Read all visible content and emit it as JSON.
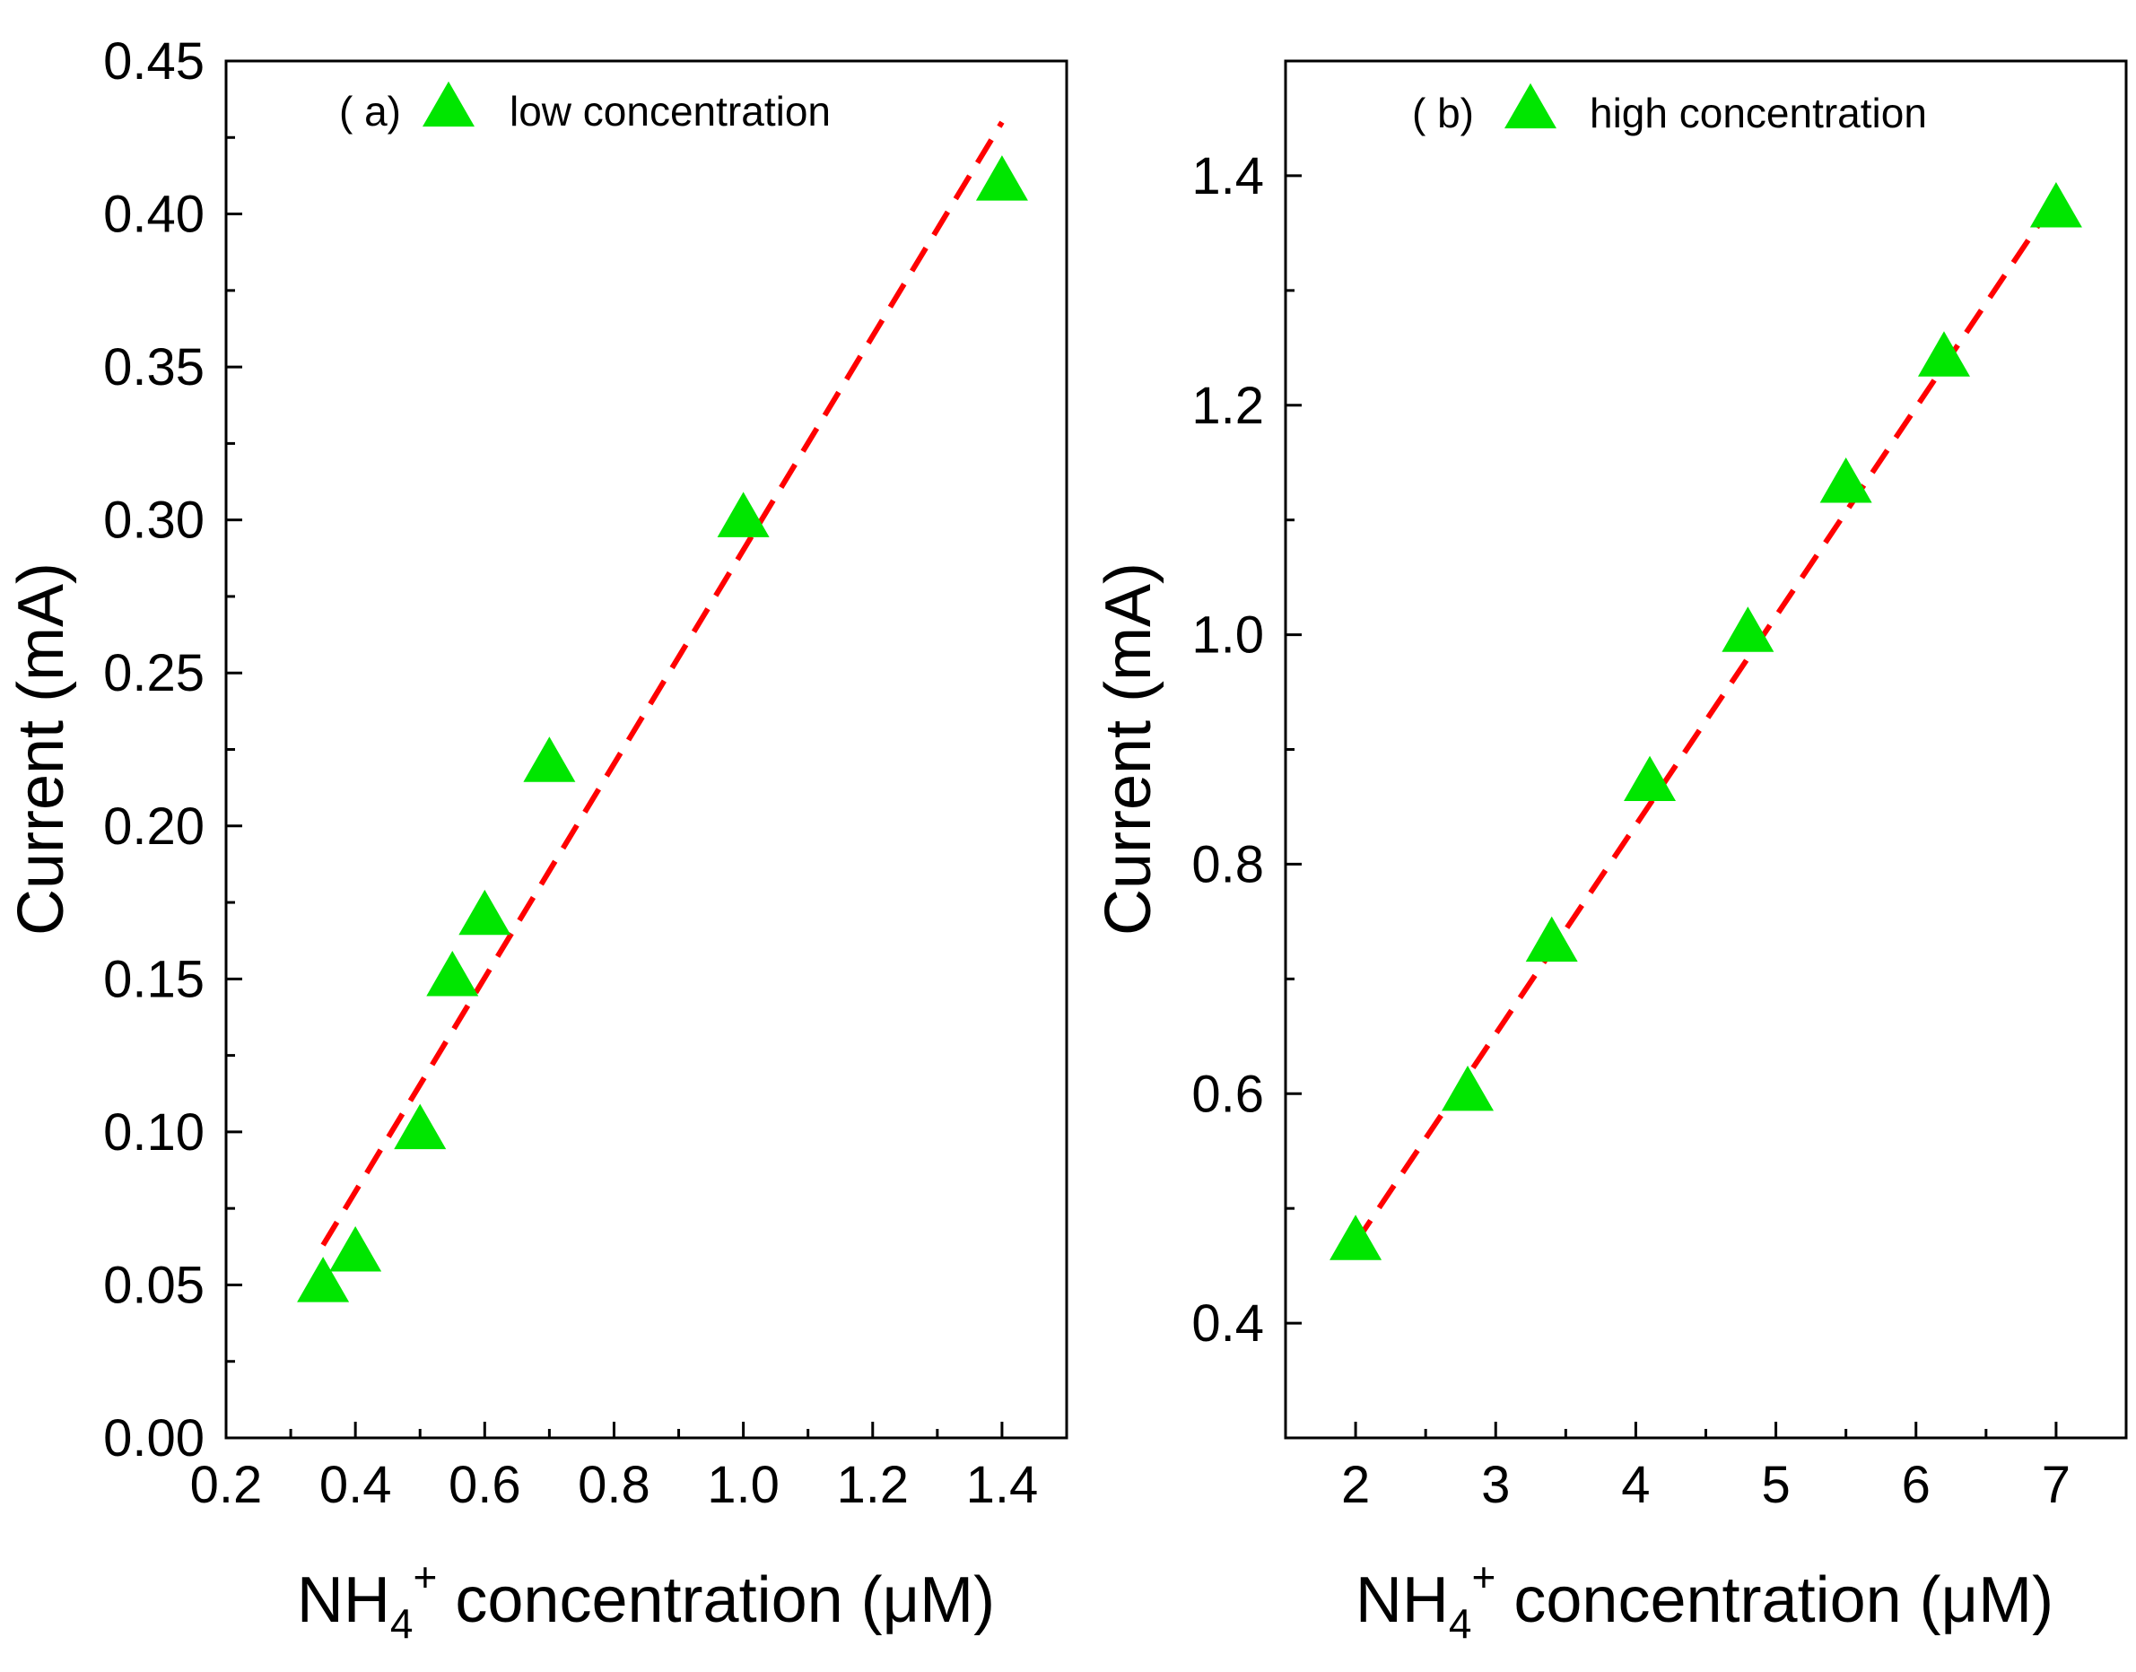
{
  "chart_data": [
    {
      "type": "scatter",
      "panel_label": "( a)",
      "xlabel": {
        "base": "NH",
        "sub": "4",
        "sup": "+",
        "rest": " concentration (μM)"
      },
      "ylabel": "Current (mA)",
      "xlim": [
        0.2,
        1.5
      ],
      "ylim": [
        0.0,
        0.45
      ],
      "xticks": [
        {
          "value": 0.2,
          "label": "0.2"
        },
        {
          "value": 0.4,
          "label": "0.4"
        },
        {
          "value": 0.6,
          "label": "0.6"
        },
        {
          "value": 0.8,
          "label": "0.8"
        },
        {
          "value": 1.0,
          "label": "1.0"
        },
        {
          "value": 1.2,
          "label": "1.2"
        },
        {
          "value": 1.4,
          "label": "1.4"
        }
      ],
      "yticks": [
        {
          "value": 0.0,
          "label": "0.00"
        },
        {
          "value": 0.05,
          "label": "0.05"
        },
        {
          "value": 0.1,
          "label": "0.10"
        },
        {
          "value": 0.15,
          "label": "0.15"
        },
        {
          "value": 0.2,
          "label": "0.20"
        },
        {
          "value": 0.25,
          "label": "0.25"
        },
        {
          "value": 0.3,
          "label": "0.30"
        },
        {
          "value": 0.35,
          "label": "0.35"
        },
        {
          "value": 0.4,
          "label": "0.40"
        },
        {
          "value": 0.45,
          "label": "0.45"
        }
      ],
      "x_minor_step": 0.1,
      "y_minor_step": 0.025,
      "series": [
        {
          "name": "low concentration",
          "marker": "triangle",
          "color": "#00e600",
          "x": [
            0.35,
            0.4,
            0.5,
            0.55,
            0.6,
            0.7,
            1.0,
            1.4
          ],
          "y": [
            0.05,
            0.06,
            0.1,
            0.15,
            0.17,
            0.22,
            0.3,
            0.41
          ]
        }
      ],
      "fit": {
        "color": "#ff0000",
        "style": "dashed",
        "x": [
          0.35,
          1.4
        ],
        "y": [
          0.063,
          0.43
        ]
      },
      "legend_position": "top"
    },
    {
      "type": "scatter",
      "panel_label": "( b)",
      "xlabel": {
        "base": "NH",
        "sub": "4",
        "sup": "+",
        "rest": " concentration (μM)"
      },
      "ylabel": "Current (mA)",
      "xlim": [
        1.5,
        7.5
      ],
      "ylim": [
        0.3,
        1.5
      ],
      "xticks": [
        {
          "value": 2,
          "label": "2"
        },
        {
          "value": 3,
          "label": "3"
        },
        {
          "value": 4,
          "label": "4"
        },
        {
          "value": 5,
          "label": "5"
        },
        {
          "value": 6,
          "label": "6"
        },
        {
          "value": 7,
          "label": "7"
        }
      ],
      "yticks": [
        {
          "value": 0.4,
          "label": "0.4"
        },
        {
          "value": 0.6,
          "label": "0.6"
        },
        {
          "value": 0.8,
          "label": "0.8"
        },
        {
          "value": 1.0,
          "label": "1.0"
        },
        {
          "value": 1.2,
          "label": "1.2"
        },
        {
          "value": 1.4,
          "label": "1.4"
        }
      ],
      "x_minor_step": 0.5,
      "y_minor_step": 0.1,
      "series": [
        {
          "name": "high concentration",
          "marker": "triangle",
          "color": "#00e600",
          "x": [
            2.0,
            2.8,
            3.4,
            4.1,
            4.8,
            5.5,
            6.2,
            7.0
          ],
          "y": [
            0.47,
            0.6,
            0.73,
            0.87,
            1.0,
            1.13,
            1.24,
            1.37
          ]
        }
      ],
      "fit": {
        "color": "#ff0000",
        "style": "dashed",
        "x": [
          2.0,
          7.0
        ],
        "y": [
          0.47,
          1.38
        ]
      },
      "legend_position": "top"
    }
  ]
}
